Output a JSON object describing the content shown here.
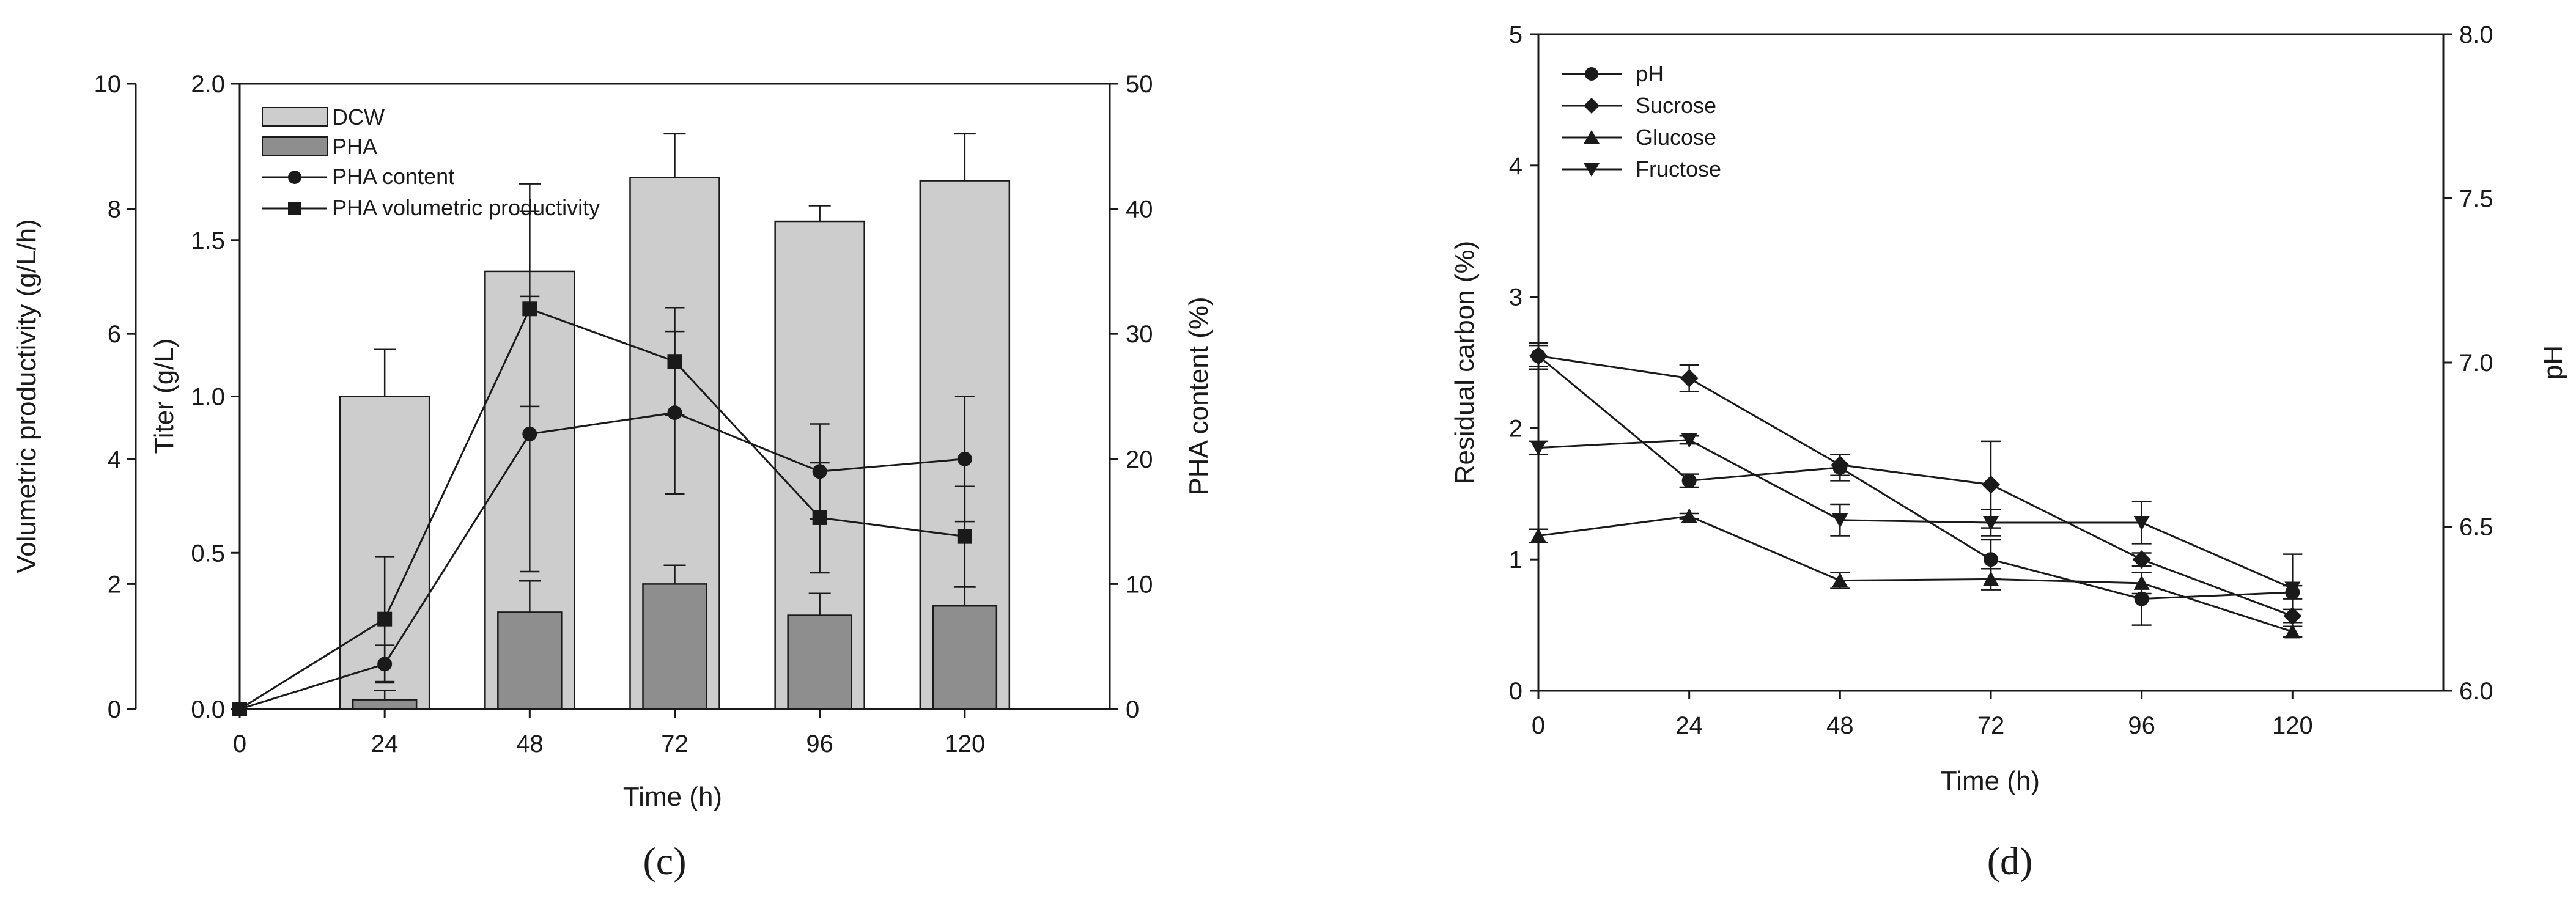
{
  "chart_data": [
    {
      "panel": "(c)",
      "type": "bar+line",
      "xlabel": "Time (h)",
      "ylabel_left_outer": "Volumetric productivity (g/L/h)",
      "ylabel_left_inner": "Titer (g/L)",
      "ylabel_right": "PHA content (%)",
      "x_ticks": [
        0,
        24,
        48,
        72,
        96,
        120
      ],
      "outer_left_ticks": [
        0,
        2,
        4,
        6,
        8,
        10
      ],
      "inner_left_ticks": [
        "0.0",
        "0.5",
        "1.0",
        "1.5",
        "2.0"
      ],
      "right_ticks": [
        0,
        10,
        20,
        30,
        40,
        50
      ],
      "x_range": [
        0,
        144
      ],
      "titer_range": [
        0,
        2.0
      ],
      "content_range": [
        0,
        50
      ],
      "legend": [
        "DCW",
        "PHA",
        "PHA content",
        "PHA volumetric productivity"
      ],
      "bars": {
        "x": [
          24,
          48,
          72,
          96,
          120
        ],
        "DCW": [
          1.0,
          1.4,
          1.7,
          1.56,
          1.69
        ],
        "DCW_err": [
          0.15,
          0.28,
          0.14,
          0.05,
          0.15
        ],
        "PHA": [
          0.03,
          0.31,
          0.4,
          0.3,
          0.33
        ],
        "PHA_err": [
          0.03,
          0.1,
          0.06,
          0.07,
          0.06
        ]
      },
      "series": [
        {
          "name": "PHA content",
          "x": [
            0,
            24,
            48,
            72,
            96,
            120
          ],
          "values": [
            0,
            3.6,
            22.0,
            23.7,
            19.0,
            20.0
          ],
          "err": [
            0,
            1.5,
            11.0,
            6.5,
            3.8,
            5.0
          ],
          "axis": "right",
          "marker": "circle"
        },
        {
          "name": "PHA volumetric productivity",
          "x": [
            0,
            24,
            48,
            72,
            96,
            120
          ],
          "values": [
            0,
            7.2,
            32.0,
            27.8,
            15.3,
            13.8
          ],
          "err": [
            0,
            5.0,
            7.8,
            4.3,
            4.4,
            4.0
          ],
          "axis": "right",
          "marker": "square"
        }
      ]
    },
    {
      "panel": "(d)",
      "type": "line",
      "xlabel": "Time (h)",
      "ylabel_left": "Residual carbon (%)",
      "ylabel_right": "pH",
      "x_ticks": [
        0,
        24,
        48,
        72,
        96,
        120
      ],
      "left_ticks": [
        0,
        1,
        2,
        3,
        4,
        5
      ],
      "right_ticks": [
        "6.0",
        "6.5",
        "7.0",
        "7.5",
        "8.0"
      ],
      "x_range": [
        0,
        144
      ],
      "left_range": [
        0,
        5
      ],
      "right_range": [
        6.0,
        8.0
      ],
      "legend": [
        "pH",
        "Sucrose",
        "Glucose",
        "Fructose"
      ],
      "series": [
        {
          "name": "pH",
          "axis": "right",
          "marker": "circle",
          "x": [
            0,
            24,
            48,
            72,
            96,
            120
          ],
          "values": [
            7.02,
            6.64,
            6.68,
            6.4,
            6.28,
            6.3
          ],
          "err": [
            0.04,
            0.02,
            0.04,
            0.06,
            0.08,
            0.02
          ]
        },
        {
          "name": "Sucrose",
          "axis": "left",
          "marker": "diamond",
          "x": [
            0,
            24,
            48,
            72,
            96,
            120
          ],
          "values": [
            2.55,
            2.38,
            1.72,
            1.57,
            1.0,
            0.57
          ],
          "err": [
            0.08,
            0.1,
            0.08,
            0.33,
            0.05,
            0.05
          ]
        },
        {
          "name": "Glucose",
          "axis": "left",
          "marker": "triangle-up",
          "x": [
            0,
            24,
            48,
            72,
            96,
            120
          ],
          "values": [
            1.18,
            1.33,
            0.84,
            0.85,
            0.82,
            0.45
          ],
          "err": [
            0.05,
            0.02,
            0.06,
            0.08,
            0.08,
            0.04
          ]
        },
        {
          "name": "Fructose",
          "axis": "left",
          "marker": "triangle-down",
          "x": [
            0,
            24,
            48,
            72,
            96,
            120
          ],
          "values": [
            1.85,
            1.91,
            1.3,
            1.28,
            1.28,
            0.78
          ],
          "err": [
            0.05,
            0.03,
            0.12,
            0.1,
            0.16,
            0.26
          ]
        }
      ]
    }
  ],
  "panel_labels": {
    "c": "(c)",
    "d": "(d)"
  }
}
